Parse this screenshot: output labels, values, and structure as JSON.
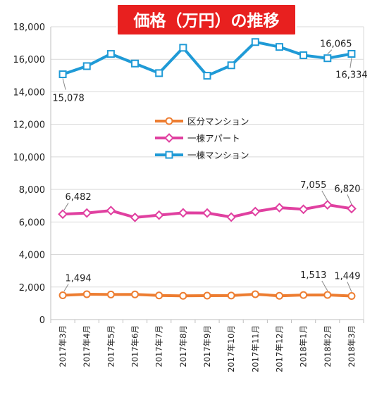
{
  "chart_data": {
    "type": "line",
    "title": "価格（万円）の推移",
    "ylim": [
      0,
      18000
    ],
    "yticks": [
      "0",
      "2,000",
      "4,000",
      "6,000",
      "8,000",
      "10,000",
      "12,000",
      "14,000",
      "16,000",
      "18,000"
    ],
    "categories": [
      "2017年3月",
      "2017年4月",
      "2017年5月",
      "2017年6月",
      "2017年7月",
      "2017年8月",
      "2017年9月",
      "2017年10月",
      "2017年11月",
      "2017年12月",
      "2018年1月",
      "2018年2月",
      "2018年3月"
    ],
    "grid": true,
    "legend_position": "center",
    "series": [
      {
        "name": "区分マンション",
        "color": "#ED7D31",
        "marker": "circle",
        "values": [
          1494,
          1560,
          1540,
          1545,
          1480,
          1460,
          1470,
          1475,
          1560,
          1460,
          1510,
          1513,
          1449
        ]
      },
      {
        "name": "一棟アパート",
        "color": "#E040A0",
        "marker": "diamond",
        "values": [
          6482,
          6550,
          6700,
          6280,
          6420,
          6560,
          6550,
          6300,
          6640,
          6880,
          6780,
          7055,
          6820
        ]
      },
      {
        "name": "一棟マンション",
        "color": "#1F9AD6",
        "marker": "square",
        "values": [
          15078,
          15580,
          16330,
          15740,
          15150,
          16710,
          14990,
          15630,
          17060,
          16760,
          16250,
          16065,
          16334
        ]
      }
    ],
    "data_labels": [
      {
        "series": 0,
        "index": 0,
        "text": "1,494"
      },
      {
        "series": 0,
        "index": 11,
        "text": "1,513"
      },
      {
        "series": 0,
        "index": 12,
        "text": "1,449"
      },
      {
        "series": 1,
        "index": 0,
        "text": "6,482"
      },
      {
        "series": 1,
        "index": 11,
        "text": "7,055"
      },
      {
        "series": 1,
        "index": 12,
        "text": "6,820"
      },
      {
        "series": 2,
        "index": 0,
        "text": "15,078"
      },
      {
        "series": 2,
        "index": 11,
        "text": "16,065"
      },
      {
        "series": 2,
        "index": 12,
        "text": "16,334"
      }
    ]
  }
}
